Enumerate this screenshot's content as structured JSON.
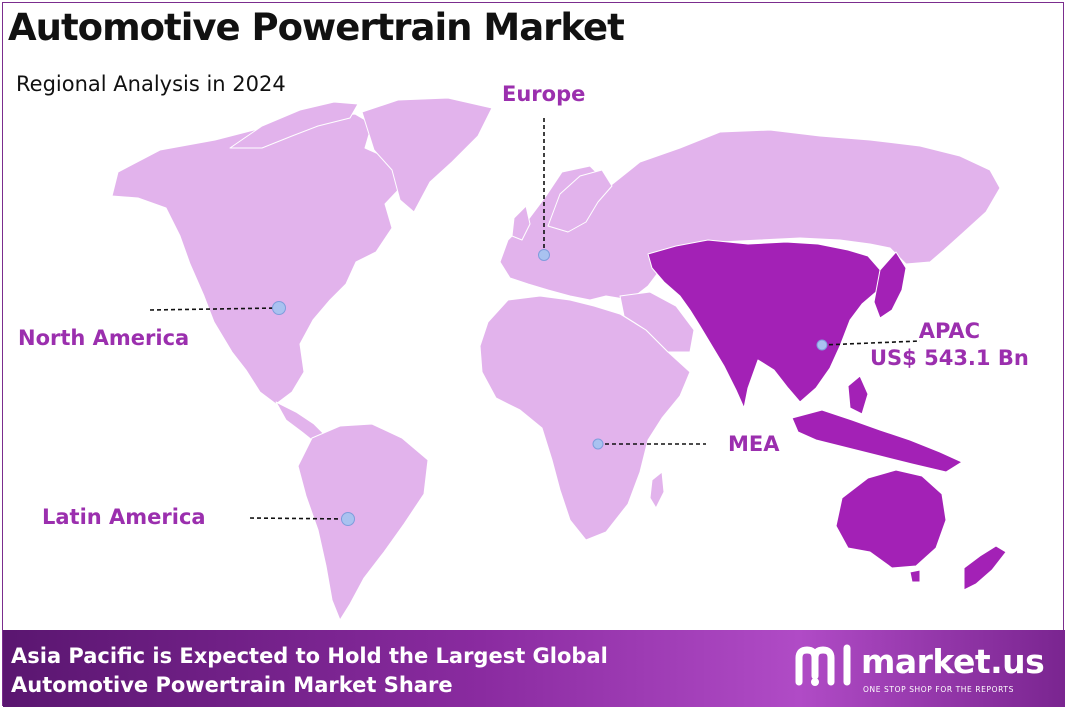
{
  "header": {
    "title": "Automotive Powertrain Market",
    "subtitle": "Regional Analysis in 2024"
  },
  "map": {
    "regions": [
      {
        "id": "north-america",
        "label": "North America",
        "highlighted": false
      },
      {
        "id": "europe",
        "label": "Europe",
        "highlighted": false
      },
      {
        "id": "apac",
        "label": "APAC",
        "value": "US$ 543.1 Bn",
        "highlighted": true
      },
      {
        "id": "mea",
        "label": "MEA",
        "highlighted": false
      },
      {
        "id": "latin-america",
        "label": "Latin America",
        "highlighted": false
      }
    ]
  },
  "footer": {
    "line1": "Asia Pacific is Expected to Hold the Largest Global",
    "line2": "Automotive Powertrain Market Share",
    "brand": "market.us",
    "tagline": "ONE STOP SHOP FOR THE REPORTS"
  },
  "colors": {
    "land": "#e2b3ec",
    "land_highlight": "#a321b6",
    "label": "#9b2fae",
    "marker": "#a9c2f0",
    "footer_start": "#5a1670",
    "footer_end": "#b04bc6"
  },
  "icons": [
    "market-us-logo-icon",
    "marker-dot-icon"
  ]
}
